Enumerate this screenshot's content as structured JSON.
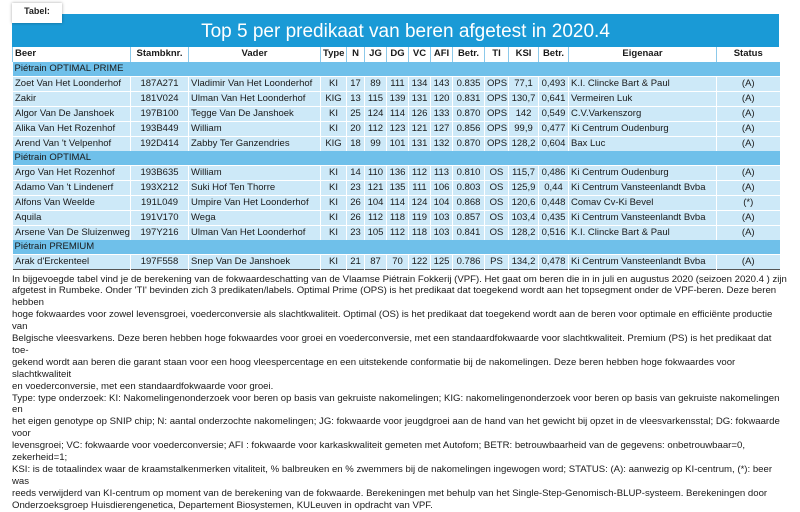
{
  "tab_label": "Tabel:",
  "title": "Top 5 per predikaat van beren afgetest in 2020.4",
  "columns": [
    "Beer",
    "Stambknr.",
    "Vader",
    "Type",
    "N",
    "JG",
    "DG",
    "VC",
    "AFI",
    "Betr.",
    "TI",
    "KSI",
    "Betr.",
    "Eigenaar",
    "Status"
  ],
  "groups": [
    {
      "name": "Piétrain OPTIMAL PRIME",
      "rows": [
        [
          "Zoet Van Het Loonderhof",
          "187A271",
          "Vladimir Van Het Loonderhof",
          "KI",
          "17",
          "89",
          "111",
          "134",
          "143",
          "0.835",
          "OPS",
          "77,1",
          "0,493",
          "K.I. Clincke Bart & Paul",
          "(A)"
        ],
        [
          "Zakir",
          "181V024",
          "Ulman Van Het Loonderhof",
          "KIG",
          "13",
          "115",
          "139",
          "131",
          "120",
          "0.831",
          "OPS",
          "130,7",
          "0,641",
          "Vermeiren Luk",
          "(A)"
        ],
        [
          "Algor Van De Janshoek",
          "197B100",
          "Tegge Van De Janshoek",
          "KI",
          "25",
          "124",
          "114",
          "126",
          "133",
          "0.870",
          "OPS",
          "142",
          "0,549",
          "C.V.Varkenszorg",
          "(A)"
        ],
        [
          "Alika Van Het Rozenhof",
          "193B449",
          "William",
          "KI",
          "20",
          "112",
          "123",
          "121",
          "127",
          "0.856",
          "OPS",
          "99,9",
          "0,477",
          "Ki Centrum Oudenburg",
          "(A)"
        ],
        [
          "Arend Van 't Velpenhof",
          "192D414",
          "Zabby Ter Ganzendries",
          "KIG",
          "18",
          "99",
          "101",
          "131",
          "132",
          "0.870",
          "OPS",
          "128,2",
          "0,604",
          "Bax Luc",
          "(A)"
        ]
      ]
    },
    {
      "name": "Piétrain OPTIMAL",
      "rows": [
        [
          "Argo Van Het Rozenhof",
          "193B635",
          "William",
          "KI",
          "14",
          "110",
          "136",
          "112",
          "113",
          "0.810",
          "OS",
          "115,7",
          "0,486",
          "Ki Centrum Oudenburg",
          "(A)"
        ],
        [
          "Adamo Van 't Lindenerf",
          "193X212",
          "Suki Hof Ten Thorre",
          "KI",
          "23",
          "121",
          "135",
          "111",
          "106",
          "0.803",
          "OS",
          "125,9",
          "0,44",
          "Ki Centrum Vansteenlandt Bvba",
          "(A)"
        ],
        [
          "Alfons Van Weelde",
          "191L049",
          "Umpire Van Het Loonderhof",
          "KI",
          "26",
          "104",
          "114",
          "124",
          "104",
          "0.868",
          "OS",
          "120,6",
          "0,448",
          "Comav Cv-Ki Bevel",
          "(*)"
        ],
        [
          "Aquila",
          "191V170",
          "Wega",
          "KI",
          "26",
          "112",
          "118",
          "119",
          "103",
          "0.857",
          "OS",
          "103,4",
          "0,435",
          "Ki Centrum Vansteenlandt Bvba",
          "(A)"
        ],
        [
          "Arsene Van De Sluizenweg",
          "197Y216",
          "Ulman Van Het Loonderhof",
          "KI",
          "23",
          "105",
          "112",
          "118",
          "103",
          "0.841",
          "OS",
          "128,2",
          "0,516",
          "K.I. Clincke Bart & Paul",
          "(A)"
        ]
      ]
    },
    {
      "name": "Piétrain PREMIUM",
      "rows": [
        [
          "Arak d'Erckenteel",
          "197F558",
          "Snep Van De Janshoek",
          "KI",
          "21",
          "87",
          "70",
          "122",
          "125",
          "0.786",
          "PS",
          "134,2",
          "0,478",
          "Ki Centrum Vansteenlandt Bvba",
          "(A)"
        ]
      ]
    }
  ],
  "notes": [
    "In bijgevoegde tabel vind je de berekening van de fokwaardeschatting van de Vlaamse Piétrain Fokkerij (VPF). Het gaat om beren die in in juli  en augustus 2020 (seizoen 2020.4 ) zijn",
    "afgetest in Rumbeke. Onder 'TI' bevinden zich 3 predikaten/labels. Optimal Prime (OPS) is het predikaat dat toegekend wordt aan het topsegment onder de VPF-beren. Deze beren hebben",
    "hoge fokwaardes voor zowel levensgroei, voederconversie als slachtkwaliteit. Optimal (OS) is het predikaat dat toegekend wordt aan de beren voor optimale en efficiënte productie van",
    "Belgische vleesvarkens. Deze beren hebben hoge fokwaardes voor groei en voederconversie, met een standaardfokwaarde voor slachtkwaliteit. Premium (PS) is het predikaat dat toe-",
    "gekend wordt aan beren die garant staan voor een hoog vleespercentage en een uitstekende conformatie bij de nakomelingen. Deze beren hebben hoge fokwaardes voor slachtkwaliteit",
    "en voederconversie, met een standaardfokwaarde voor groei.",
    "Type: type onderzoek: KI: Nakomelingenonderzoek voor beren op basis van gekruiste nakomelingen; KIG: nakomelingenonderzoek voor beren op basis van gekruiste nakomelingen en",
    "het eigen genotype op SNIP chip; N: aantal onderzochte nakomelingen; JG: fokwaarde voor jeugdgroei aan de hand van het gewicht bij opzet in de vleesvarkensstal; DG: fokwaarde voor",
    "levensgroei; VC: fokwaarde voor voederconversie; AFI : fokwaarde voor karkaskwaliteit gemeten met Autofom; BETR: betrouwbaarheid van de gegevens: onbetrouwbaar=0, zekerheid=1;",
    "KSI: is de totaalindex waar de kraamstalkenmerken vitaliteit, % balbreuken en % zwemmers bij de nakomelingen ingewogen word; STATUS: (A): aanwezig op KI-centrum, (*): beer was",
    "reeds verwijderd van KI-centrum op moment van de berekening van de fokwaarde. Berekeningen met behulp van het Single-Step-Genomisch-BLUP-systeem. Berekeningen door",
    "Onderzoeksgroep Huisdierengenetica, Departement Biosystemen, KULeuven in opdracht van VPF."
  ]
}
